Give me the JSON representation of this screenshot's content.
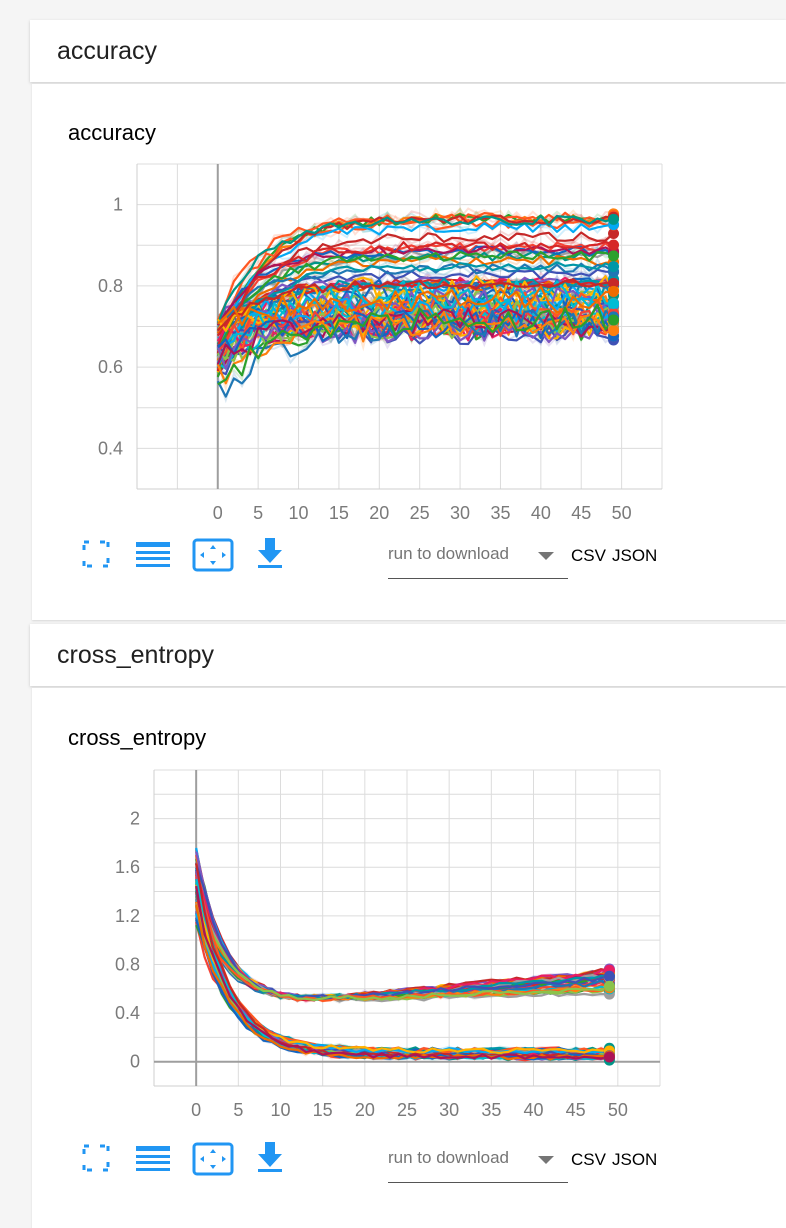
{
  "accent_color": "#2196f3",
  "cards": [
    {
      "header": "accuracy",
      "title": "accuracy",
      "controls": {
        "icons": [
          "fullscreen-icon",
          "lines-icon",
          "fit-domain-icon",
          "download-icon"
        ],
        "run_select_placeholder": "run to download",
        "csv_label": "CSV",
        "json_label": "JSON"
      }
    },
    {
      "header": "cross_entropy",
      "title": "cross_entropy",
      "controls": {
        "icons": [
          "fullscreen-icon",
          "lines-icon",
          "fit-domain-icon",
          "download-icon"
        ],
        "run_select_placeholder": "run to download",
        "csv_label": "CSV",
        "json_label": "JSON"
      }
    }
  ],
  "chart_data": [
    {
      "type": "line",
      "title": "accuracy",
      "xlabel": "",
      "ylabel": "",
      "xlim": [
        -10,
        55
      ],
      "ylim": [
        0.3,
        1.1
      ],
      "xticks": [
        0,
        5,
        10,
        15,
        20,
        25,
        30,
        35,
        40,
        45,
        50
      ],
      "yticks": [
        0.4,
        0.6,
        0.8,
        1
      ],
      "ytick_labels": [
        "0.4",
        "0.6",
        "0.8",
        "1"
      ],
      "grid": true,
      "note_series": "many overlapping runs (about 60), each spanning step 0 to 49",
      "series_groups": [
        {
          "label": "",
          "count": 60,
          "start_range": [
            0.58,
            0.72
          ],
          "end_range": [
            0.69,
            0.97
          ],
          "decay_rate": 0.2
        },
        {
          "label": "",
          "count": 3,
          "start_range": [
            0.5,
            0.6
          ],
          "end_range": [
            0.62,
            0.72
          ],
          "decay_rate": 0.12
        }
      ],
      "colors": [
        "#1f77b4",
        "#ff7f0e",
        "#2ca02c",
        "#d62728",
        "#e91e63",
        "#9e9e9e",
        "#0097a7",
        "#3f51b5",
        "#ff5722",
        "#8bc34a",
        "#03a9f4",
        "#f44336",
        "#009688",
        "#ffb300",
        "#7e57c2",
        "#00bcd4",
        "#c62828",
        "#1565c0",
        "#ef6c00",
        "#ad1457"
      ]
    },
    {
      "type": "line",
      "title": "cross_entropy",
      "xlabel": "",
      "ylabel": "",
      "xlim": [
        -5,
        55
      ],
      "ylim": [
        -0.2,
        2.4
      ],
      "xticks": [
        0,
        5,
        10,
        15,
        20,
        25,
        30,
        35,
        40,
        45,
        50
      ],
      "yticks": [
        0,
        0.4,
        0.8,
        1.2,
        1.6,
        2
      ],
      "ytick_labels": [
        "0",
        "0.4",
        "0.8",
        "1.2",
        "1.6",
        "2"
      ],
      "grid": true,
      "note_series": "two bundles of runs: validation loss (rising to ~0.6-0.75) and training loss (decaying to ~0.05)",
      "series_groups": [
        {
          "label": "",
          "count": 30,
          "start_range": [
            1.3,
            1.8
          ],
          "min_value": 0.5,
          "end_range": [
            0.55,
            0.75
          ]
        },
        {
          "label": "",
          "count": 30,
          "start_range": [
            1.1,
            1.6
          ],
          "min_value": 0.02,
          "end_range": [
            0.03,
            0.1
          ]
        }
      ],
      "colors": [
        "#1f77b4",
        "#ff7f0e",
        "#2ca02c",
        "#d62728",
        "#e91e63",
        "#9e9e9e",
        "#0097a7",
        "#3f51b5",
        "#ff5722",
        "#8bc34a",
        "#03a9f4",
        "#f44336",
        "#009688",
        "#ffb300",
        "#7e57c2",
        "#00bcd4",
        "#c62828",
        "#1565c0",
        "#ef6c00",
        "#ad1457"
      ]
    }
  ]
}
